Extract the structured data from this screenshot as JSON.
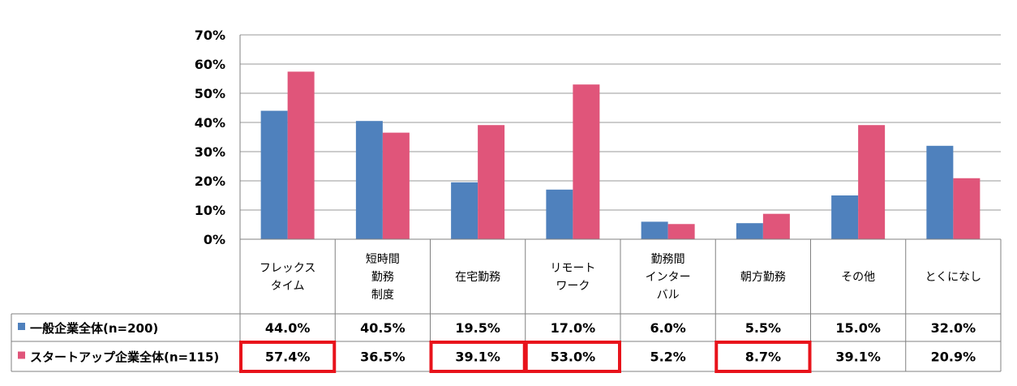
{
  "chart_data": {
    "type": "bar",
    "categories": [
      [
        "フレックス",
        "タイム"
      ],
      [
        "短時間",
        "勤務",
        "制度"
      ],
      [
        "在宅勤務"
      ],
      [
        "リモート",
        "ワーク"
      ],
      [
        "勤務間",
        "インター",
        "バル"
      ],
      [
        "朝方勤務"
      ],
      [
        "その他"
      ],
      [
        "とくになし"
      ]
    ],
    "series": [
      {
        "name": "一般企業全体(n=200)",
        "color": "#4f81bd",
        "values": [
          44.0,
          40.5,
          19.5,
          17.0,
          6.0,
          5.5,
          15.0,
          32.0
        ],
        "labels": [
          "44.0%",
          "40.5%",
          "19.5%",
          "17.0%",
          "6.0%",
          "5.5%",
          "15.0%",
          "32.0%"
        ]
      },
      {
        "name": "スタートアップ企業全体(n=115)",
        "color": "#e0557a",
        "values": [
          57.4,
          36.5,
          39.1,
          53.0,
          5.2,
          8.7,
          39.1,
          20.9
        ],
        "labels": [
          "57.4%",
          "36.5%",
          "39.1%",
          "53.0%",
          "5.2%",
          "8.7%",
          "39.1%",
          "20.9%"
        ]
      }
    ],
    "y_ticks": [
      "0%",
      "10%",
      "20%",
      "30%",
      "40%",
      "50%",
      "60%",
      "70%"
    ],
    "ylim": [
      0,
      70
    ],
    "highlighted_cells": [
      0,
      2,
      3,
      5
    ],
    "highlight_color": "#e8131b",
    "grid": true,
    "legend": "bottom data table"
  }
}
